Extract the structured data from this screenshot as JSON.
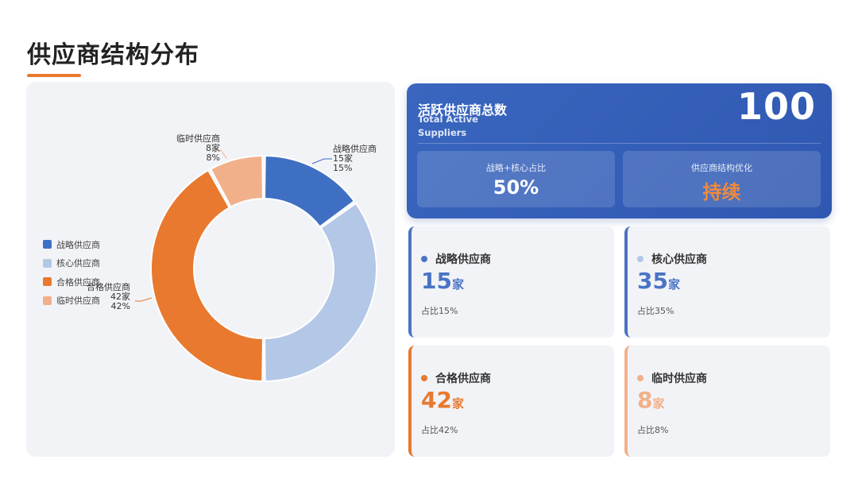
{
  "page": {
    "title": "供应商结构分布"
  },
  "summary": {
    "title": "活跃供应商总数",
    "subtitle": "Total Active Suppliers",
    "total": "100",
    "metrics": [
      {
        "label": "战略+核心占比",
        "value": "50%"
      },
      {
        "label": "供应商结构优化",
        "value": "持续"
      }
    ]
  },
  "cards": [
    {
      "name": "战略供应商",
      "count": "15",
      "unit": "家",
      "ratio": "占比15%",
      "color": "#4a74c4",
      "bar_color": "#4a74c4",
      "text_color": "#4a74c4"
    },
    {
      "name": "核心供应商",
      "count": "35",
      "unit": "家",
      "ratio": "占比35%",
      "color": "#b3c7e6",
      "bar_color": "#4a74c4",
      "text_color": "#4a74c4"
    },
    {
      "name": "合格供应商",
      "count": "42",
      "unit": "家",
      "ratio": "占比42%",
      "color": "#e8792e",
      "bar_color": "#e8792e",
      "text_color": "#e8792e"
    },
    {
      "name": "临时供应商",
      "count": "8",
      "unit": "家",
      "ratio": "占比8%",
      "color": "#f2b08a",
      "bar_color": "#f2b08a",
      "text_color": "#f2b08a"
    }
  ],
  "chart_data": {
    "type": "pie",
    "donut": true,
    "categories": [
      "战略供应商",
      "核心供应商",
      "合格供应商",
      "临时供应商"
    ],
    "values": [
      15,
      35,
      42,
      8
    ],
    "colors": [
      "#3f6fc2",
      "#b3c7e6",
      "#e8792e",
      "#f2b08a"
    ],
    "data_labels": [
      [
        "战略供应商",
        "15家",
        "15%"
      ],
      [
        "",
        "",
        ""
      ],
      [
        "合格供应商",
        "42家",
        "42%"
      ],
      [
        "临时供应商",
        "8家",
        "8%"
      ]
    ],
    "legend": {
      "position": "left",
      "items": [
        "战略供应商",
        "核心供应商",
        "合格供应商",
        "临时供应商"
      ]
    }
  }
}
